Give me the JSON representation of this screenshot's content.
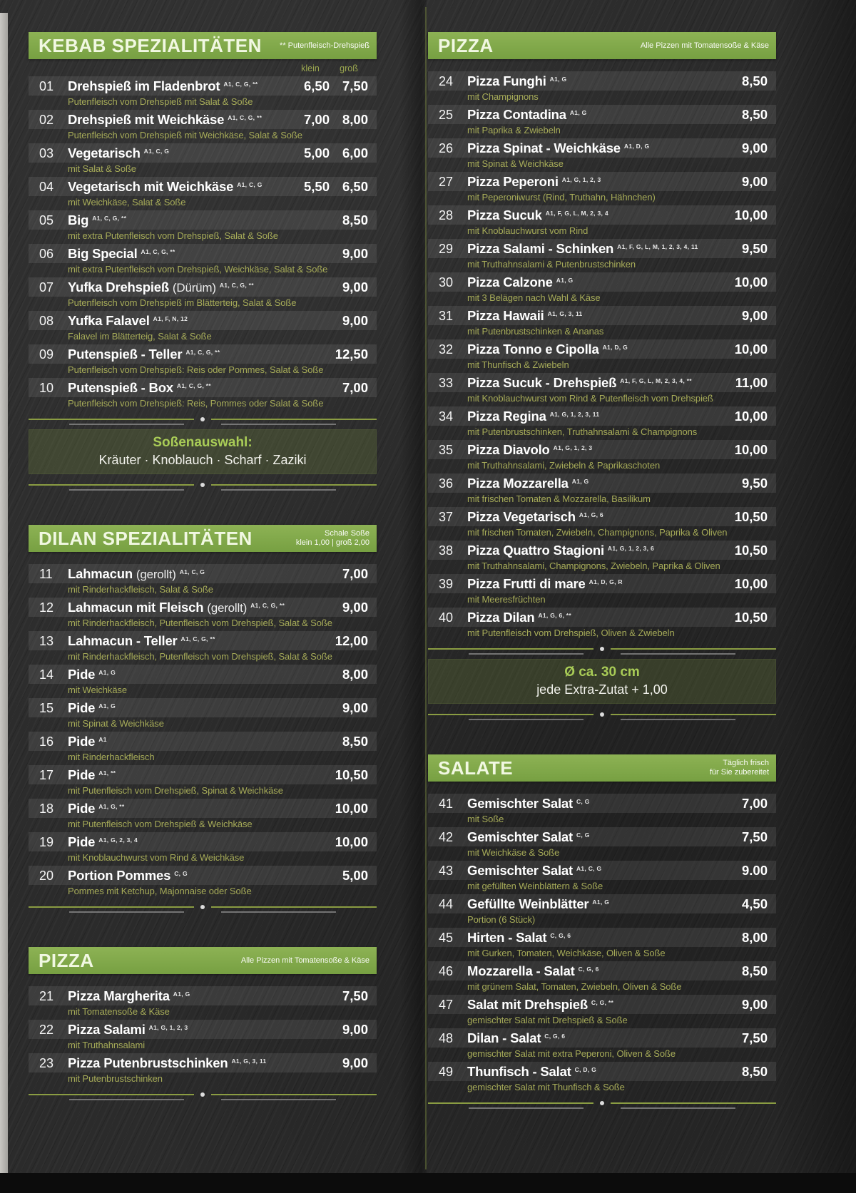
{
  "colors": {
    "accent_green": "#82a84b",
    "description_olive": "#a6ab58",
    "background_slate": "#2b2b2b",
    "text_white": "#ffffff"
  },
  "columns": {
    "left": [
      {
        "type": "section",
        "title": "KEBAB SPEZIALITÄTEN",
        "note": [
          "** Putenfleisch-Drehspieß"
        ],
        "price_labels": [
          "klein",
          "groß"
        ],
        "items": [
          {
            "num": "01",
            "name": "Drehspieß im Fladenbrot",
            "sup": "A1, C, G, **",
            "desc": "Putenfleisch vom Drehspieß mit Salat & Soße",
            "prices": [
              "6,50",
              "7,50"
            ]
          },
          {
            "num": "02",
            "name": "Drehspieß mit Weichkäse",
            "sup": "A1, C, G, **",
            "desc": "Putenfleisch vom Drehspieß mit Weichkäse, Salat & Soße",
            "prices": [
              "7,00",
              "8,00"
            ]
          },
          {
            "num": "03",
            "name": "Vegetarisch",
            "sup": "A1, C, G",
            "desc": "mit Salat & Soße",
            "prices": [
              "5,00",
              "6,00"
            ]
          },
          {
            "num": "04",
            "name": "Vegetarisch mit Weichkäse",
            "sup": "A1, C, G",
            "desc": "mit Weichkäse, Salat & Soße",
            "prices": [
              "5,50",
              "6,50"
            ]
          },
          {
            "num": "05",
            "name": "Big",
            "sup": "A1, C, G, **",
            "desc": "mit extra Putenfleisch vom Drehspieß, Salat & Soße",
            "prices": [
              "8,50"
            ]
          },
          {
            "num": "06",
            "name": "Big Special",
            "sup": "A1, C, G, **",
            "desc": "mit extra Putenfleisch vom Drehspieß, Weichkäse, Salat & Soße",
            "prices": [
              "9,00"
            ]
          },
          {
            "num": "07",
            "name": "Yufka Drehspieß",
            "light": "(Dürüm)",
            "sup": "A1, C, G, **",
            "desc": "Putenfleisch vom Drehspieß im Blätterteig, Salat & Soße",
            "prices": [
              "9,00"
            ]
          },
          {
            "num": "08",
            "name": "Yufka Falavel",
            "sup": "A1, F, N, 12",
            "desc": "Falavel im Blätterteig, Salat & Soße",
            "prices": [
              "9,00"
            ]
          },
          {
            "num": "09",
            "name": "Putenspieß - Teller",
            "sup": "A1, C, G, **",
            "desc": "Putenfleisch vom Drehspieß: Reis oder Pommes, Salat & Soße",
            "prices": [
              "12,50"
            ]
          },
          {
            "num": "10",
            "name": "Putenspieß - Box",
            "sup": "A1, C, G, **",
            "desc": "Putenfleisch vom Drehspieß: Reis, Pommes oder Salat & Soße",
            "prices": [
              "7,00"
            ]
          }
        ]
      },
      {
        "type": "divider"
      },
      {
        "type": "infobox",
        "title": "Soßenauswahl:",
        "text": "Kräuter · Knoblauch · Scharf · Zaziki"
      },
      {
        "type": "divider"
      },
      {
        "type": "section",
        "title": "DILAN SPEZIALITÄTEN",
        "note": [
          "Schale Soße",
          "klein 1,00 | groß 2,00"
        ],
        "items": [
          {
            "num": "11",
            "name": "Lahmacun",
            "light": "(gerollt)",
            "sup": "A1, C, G",
            "desc": "mit Rinderhackfleisch, Salat & Soße",
            "prices": [
              "7,00"
            ]
          },
          {
            "num": "12",
            "name": "Lahmacun mit Fleisch",
            "light": "(gerollt)",
            "sup": "A1, C, G, **",
            "desc": "mit Rinderhackfleisch, Putenfleisch vom Drehspieß, Salat & Soße",
            "prices": [
              "9,00"
            ]
          },
          {
            "num": "13",
            "name": "Lahmacun - Teller",
            "sup": "A1, C, G, **",
            "desc": "mit Rinderhackfleisch, Putenfleisch vom Drehspieß, Salat & Soße",
            "prices": [
              "12,00"
            ]
          },
          {
            "num": "14",
            "name": "Pide",
            "sup": "A1, G",
            "desc": "mit Weichkäse",
            "prices": [
              "8,00"
            ]
          },
          {
            "num": "15",
            "name": "Pide",
            "sup": "A1, G",
            "desc": "mit Spinat & Weichkäse",
            "prices": [
              "9,00"
            ]
          },
          {
            "num": "16",
            "name": "Pide",
            "sup": "A1",
            "desc": "mit Rinderhackfleisch",
            "prices": [
              "8,50"
            ]
          },
          {
            "num": "17",
            "name": "Pide",
            "sup": "A1, **",
            "desc": "mit Putenfleisch vom Drehspieß, Spinat & Weichkäse",
            "prices": [
              "10,50"
            ]
          },
          {
            "num": "18",
            "name": "Pide",
            "sup": "A1, G, **",
            "desc": "mit Putenfleisch vom Drehspieß & Weichkäse",
            "prices": [
              "10,00"
            ]
          },
          {
            "num": "19",
            "name": "Pide",
            "sup": "A1, G, 2, 3, 4",
            "desc": "mit Knoblauchwurst vom Rind & Weichkäse",
            "prices": [
              "10,00"
            ]
          },
          {
            "num": "20",
            "name": "Portion Pommes",
            "sup": "C, G",
            "desc": "Pommes mit Ketchup, Majonnaise oder Soße",
            "prices": [
              "5,00"
            ]
          }
        ]
      },
      {
        "type": "divider"
      },
      {
        "type": "section",
        "title": "PIZZA",
        "note": [
          "Alle Pizzen mit Tomatensoße & Käse"
        ],
        "items": [
          {
            "num": "21",
            "name": "Pizza Margherita",
            "sup": "A1, G",
            "desc": "mit Tomatensoße & Käse",
            "prices": [
              "7,50"
            ]
          },
          {
            "num": "22",
            "name": "Pizza Salami",
            "sup": "A1, G, 1, 2, 3",
            "desc": "mit Truthahnsalami",
            "prices": [
              "9,00"
            ]
          },
          {
            "num": "23",
            "name": "Pizza Putenbrustschinken",
            "sup": "A1, G, 3, 11",
            "desc": "mit Putenbrustschinken",
            "prices": [
              "9,00"
            ]
          }
        ]
      },
      {
        "type": "divider"
      }
    ],
    "right": [
      {
        "type": "section",
        "title": "PIZZA",
        "note": [
          "Alle Pizzen mit Tomatensoße & Käse"
        ],
        "items": [
          {
            "num": "24",
            "name": "Pizza Funghi",
            "sup": "A1, G",
            "desc": "mit Champignons",
            "prices": [
              "8,50"
            ]
          },
          {
            "num": "25",
            "name": "Pizza Contadina",
            "sup": "A1, G",
            "desc": "mit Paprika & Zwiebeln",
            "prices": [
              "8,50"
            ]
          },
          {
            "num": "26",
            "name": "Pizza Spinat - Weichkäse",
            "sup": "A1, D, G",
            "desc": "mit Spinat & Weichkäse",
            "prices": [
              "9,00"
            ]
          },
          {
            "num": "27",
            "name": "Pizza Peperoni",
            "sup": "A1, G, 1, 2, 3",
            "desc": "mit Peperoniwurst (Rind, Truthahn, Hähnchen)",
            "prices": [
              "9,00"
            ]
          },
          {
            "num": "28",
            "name": "Pizza Sucuk",
            "sup": "A1, F, G, L, M, 2, 3, 4",
            "desc": "mit Knoblauchwurst vom Rind",
            "prices": [
              "10,00"
            ]
          },
          {
            "num": "29",
            "name": "Pizza Salami - Schinken",
            "sup": "A1, F, G, L, M, 1, 2, 3, 4, 11",
            "desc": "mit Truthahnsalami & Putenbrustschinken",
            "prices": [
              "9,50"
            ]
          },
          {
            "num": "30",
            "name": "Pizza Calzone",
            "sup": "A1, G",
            "desc": "mit 3 Belägen nach Wahl & Käse",
            "prices": [
              "10,00"
            ]
          },
          {
            "num": "31",
            "name": "Pizza Hawaii",
            "sup": "A1, G, 3, 11",
            "desc": "mit Putenbrustschinken & Ananas",
            "prices": [
              "9,00"
            ]
          },
          {
            "num": "32",
            "name": "Pizza Tonno e Cipolla",
            "sup": "A1, D, G",
            "desc": "mit Thunfisch & Zwiebeln",
            "prices": [
              "10,00"
            ]
          },
          {
            "num": "33",
            "name": "Pizza Sucuk - Drehspieß",
            "sup": "A1, F, G, L, M, 2, 3, 4, **",
            "desc": "mit Knoblauchwurst vom Rind & Putenfleisch vom Drehspieß",
            "prices": [
              "11,00"
            ]
          },
          {
            "num": "34",
            "name": "Pizza Regina",
            "sup": "A1, G, 1, 2, 3, 11",
            "desc": "mit Putenbrustschinken, Truthahnsalami & Champignons",
            "prices": [
              "10,00"
            ]
          },
          {
            "num": "35",
            "name": "Pizza Diavolo",
            "sup": "A1, G, 1, 2, 3",
            "desc": "mit Truthahnsalami, Zwiebeln & Paprikaschoten",
            "prices": [
              "10,00"
            ]
          },
          {
            "num": "36",
            "name": "Pizza Mozzarella",
            "sup": "A1, G",
            "desc": "mit frischen Tomaten & Mozzarella, Basilikum",
            "prices": [
              "9,50"
            ]
          },
          {
            "num": "37",
            "name": "Pizza Vegetarisch",
            "sup": "A1, G, 6",
            "desc": "mit frischen Tomaten, Zwiebeln, Champignons, Paprika & Oliven",
            "prices": [
              "10,50"
            ]
          },
          {
            "num": "38",
            "name": "Pizza Quattro Stagioni",
            "sup": "A1, G, 1, 2, 3, 6",
            "desc": "mit Truthahnsalami, Champignons, Zwiebeln, Paprika & Oliven",
            "prices": [
              "10,50"
            ]
          },
          {
            "num": "39",
            "name": "Pizza Frutti di mare",
            "sup": "A1, D, G, R",
            "desc": "mit Meeresfrüchten",
            "prices": [
              "10,00"
            ]
          },
          {
            "num": "40",
            "name": "Pizza Dilan",
            "sup": "A1, G, 6, **",
            "desc": "mit Putenfleisch vom Drehspieß, Oliven & Zwiebeln",
            "prices": [
              "10,50"
            ]
          }
        ]
      },
      {
        "type": "divider"
      },
      {
        "type": "infobox",
        "title": "Ø ca. 30 cm",
        "text": "jede Extra-Zutat + 1,00"
      },
      {
        "type": "divider"
      },
      {
        "type": "section",
        "title": "SALATE",
        "note": [
          "Täglich frisch",
          "für Sie zubereitet"
        ],
        "items": [
          {
            "num": "41",
            "name": "Gemischter Salat",
            "sup": "C, G",
            "desc": "mit Soße",
            "prices": [
              "7,00"
            ]
          },
          {
            "num": "42",
            "name": "Gemischter Salat",
            "sup": "C, G",
            "desc": "mit Weichkäse & Soße",
            "prices": [
              "7,50"
            ]
          },
          {
            "num": "43",
            "name": "Gemischter Salat",
            "sup": "A1, C, G",
            "desc": "mit gefüllten Weinblättern & Soße",
            "prices": [
              "9.00"
            ]
          },
          {
            "num": "44",
            "name": "Gefüllte Weinblätter",
            "sup": "A1, G",
            "desc": "Portion (6 Stück)",
            "prices": [
              "4,50"
            ]
          },
          {
            "num": "45",
            "name": "Hirten - Salat",
            "sup": "C, G, 6",
            "desc": "mit Gurken, Tomaten, Weichkäse, Oliven & Soße",
            "prices": [
              "8,00"
            ]
          },
          {
            "num": "46",
            "name": "Mozzarella - Salat",
            "sup": "C, G, 6",
            "desc": "mit grünem Salat, Tomaten, Zwiebeln, Oliven & Soße",
            "prices": [
              "8,50"
            ]
          },
          {
            "num": "47",
            "name": "Salat mit Drehspieß",
            "sup": "C, G, **",
            "desc": "gemischter Salat mit Drehspieß & Soße",
            "prices": [
              "9,00"
            ]
          },
          {
            "num": "48",
            "name": "Dilan - Salat",
            "sup": "C, G, 6",
            "desc": "gemischter Salat mit extra Peperoni, Oliven & Soße",
            "prices": [
              "7,50"
            ]
          },
          {
            "num": "49",
            "name": "Thunfisch - Salat",
            "sup": "C, D, G",
            "desc": "gemischter Salat mit Thunfisch & Soße",
            "prices": [
              "8,50"
            ]
          }
        ]
      },
      {
        "type": "divider"
      }
    ]
  }
}
